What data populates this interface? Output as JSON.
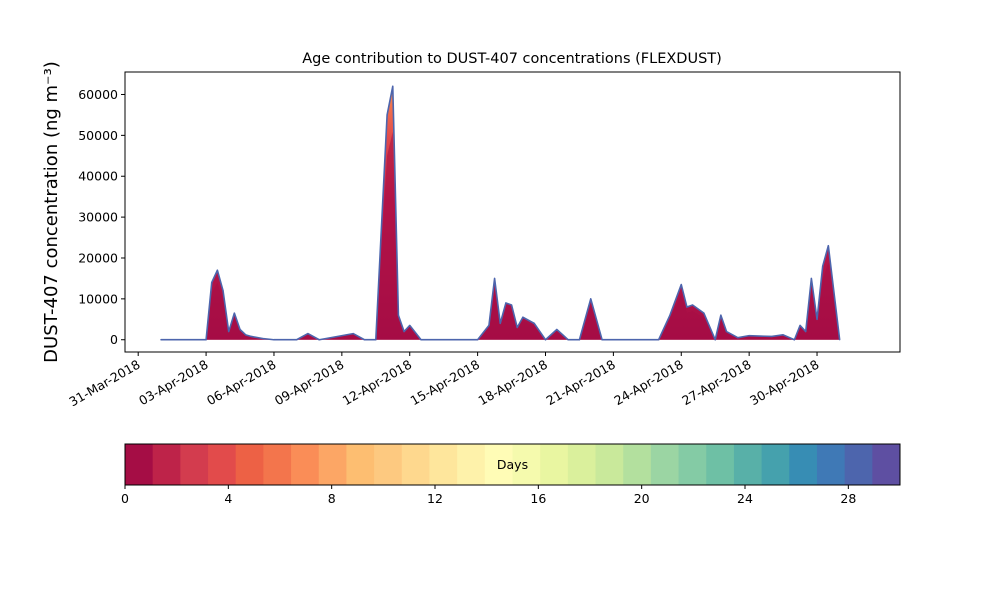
{
  "chart_data": {
    "type": "area",
    "title": "Age contribution to DUST-407 concentrations (FLEXDUST)",
    "xlabel": "",
    "ylabel": "DUST-407 concentration (ng m⁻³)",
    "x_start": "2018-04-01",
    "x_end": "2018-05-01",
    "xlim": [
      "2018-03-30T10:00",
      "2018-05-03T16:00"
    ],
    "ylim": [
      -3000,
      65500
    ],
    "x_tick_labels": [
      "31-Mar-2018",
      "03-Apr-2018",
      "06-Apr-2018",
      "09-Apr-2018",
      "12-Apr-2018",
      "15-Apr-2018",
      "18-Apr-2018",
      "21-Apr-2018",
      "24-Apr-2018",
      "27-Apr-2018",
      "30-Apr-2018"
    ],
    "x_tick_dates": [
      "2018-03-31",
      "2018-04-03",
      "2018-04-06",
      "2018-04-09",
      "2018-04-12",
      "2018-04-15",
      "2018-04-18",
      "2018-04-21",
      "2018-04-24",
      "2018-04-27",
      "2018-04-30"
    ],
    "y_ticks": [
      0,
      10000,
      20000,
      30000,
      40000,
      50000,
      60000
    ],
    "y_tick_labels": [
      "0",
      "10000",
      "20000",
      "30000",
      "40000",
      "50000",
      "60000"
    ],
    "series": [
      {
        "x": [
          "2018-04-01T00:00",
          "2018-04-03T00:00",
          "2018-04-03T06:00",
          "2018-04-03T12:00",
          "2018-04-03T18:00",
          "2018-04-04T00:00",
          "2018-04-04T06:00",
          "2018-04-04T12:00",
          "2018-04-04T18:00",
          "2018-04-05T00:00",
          "2018-04-05T12:00",
          "2018-04-06T00:00",
          "2018-04-07T00:00",
          "2018-04-07T12:00",
          "2018-04-08T00:00",
          "2018-04-09T12:00",
          "2018-04-10T00:00",
          "2018-04-10T12:00",
          "2018-04-11T00:00",
          "2018-04-11T06:00",
          "2018-04-11T12:00",
          "2018-04-11T18:00",
          "2018-04-12T00:00",
          "2018-04-12T12:00",
          "2018-04-13T00:00",
          "2018-04-13T12:00",
          "2018-04-14T00:00",
          "2018-04-15T00:00",
          "2018-04-15T12:00",
          "2018-04-15T18:00",
          "2018-04-16T00:00",
          "2018-04-16T06:00",
          "2018-04-16T12:00",
          "2018-04-16T18:00",
          "2018-04-17T00:00",
          "2018-04-17T12:00",
          "2018-04-18T00:00",
          "2018-04-18T12:00",
          "2018-04-19T00:00",
          "2018-04-19T12:00",
          "2018-04-20T00:00",
          "2018-04-20T12:00",
          "2018-04-20T18:00",
          "2018-04-21T00:00",
          "2018-04-22T00:00",
          "2018-04-23T00:00",
          "2018-04-23T12:00",
          "2018-04-24T00:00",
          "2018-04-24T06:00",
          "2018-04-24T12:00",
          "2018-04-25T00:00",
          "2018-04-25T12:00",
          "2018-04-25T18:00",
          "2018-04-26T00:00",
          "2018-04-26T12:00",
          "2018-04-27T00:00",
          "2018-04-28T00:00",
          "2018-04-28T12:00",
          "2018-04-29T00:00",
          "2018-04-29T06:00",
          "2018-04-29T12:00",
          "2018-04-29T18:00",
          "2018-04-30T00:00",
          "2018-04-30T06:00",
          "2018-04-30T12:00",
          "2018-05-01T00:00"
        ],
        "y": [
          0,
          0,
          14000,
          17000,
          12000,
          2000,
          6500,
          2500,
          1200,
          800,
          300,
          0,
          0,
          1500,
          0,
          1500,
          0,
          0,
          55000,
          62000,
          6000,
          2000,
          3500,
          0,
          0,
          0,
          0,
          0,
          3500,
          15000,
          4000,
          9000,
          8500,
          3000,
          5500,
          4000,
          0,
          2500,
          0,
          0,
          10000,
          0,
          0,
          0,
          0,
          0,
          6000,
          13500,
          8000,
          8500,
          6500,
          0,
          6000,
          2000,
          500,
          1000,
          800,
          1200,
          0,
          3500,
          2000,
          15000,
          5000,
          18000,
          23000,
          0
        ]
      }
    ],
    "colorbar": {
      "label": "Days",
      "min": 0,
      "max": 30,
      "ticks": [
        0,
        4,
        8,
        12,
        16,
        20,
        24,
        28
      ],
      "tick_labels": [
        "0",
        "4",
        "8",
        "12",
        "16",
        "20",
        "24",
        "28"
      ],
      "colors": [
        "#a50d45",
        "#be2349",
        "#d33c4e",
        "#e24b4b",
        "#ed6145",
        "#f3754c",
        "#fa8d57",
        "#fca665",
        "#fdbe71",
        "#fdc980",
        "#fed88e",
        "#fee69c",
        "#fef2aa",
        "#fffcb6",
        "#f5faad",
        "#e9f6a1",
        "#daf09c",
        "#c9e99b",
        "#b3e09e",
        "#9bd5a3",
        "#84cba5",
        "#6ec0a5",
        "#58b0a8",
        "#45a1ad",
        "#378db4",
        "#3f79b6",
        "#4d65ad",
        "#5e4fa2"
      ]
    }
  }
}
